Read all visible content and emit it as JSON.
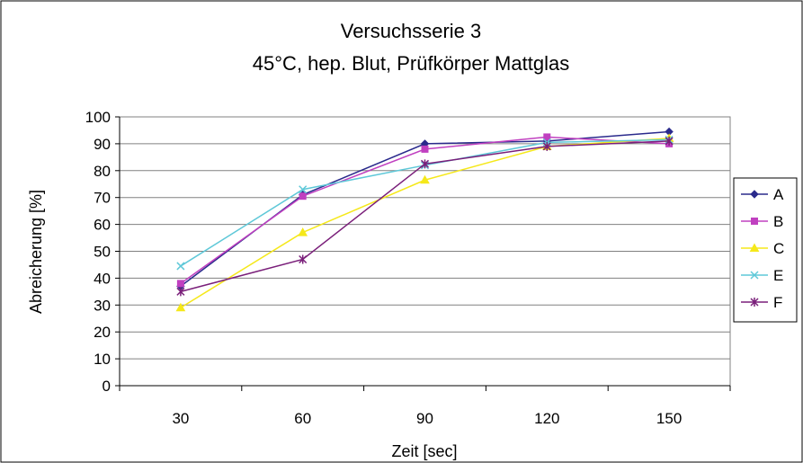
{
  "chart_data": {
    "type": "line",
    "title": "Versuchsserie 3",
    "subtitle": "45°C, hep. Blut, Prüfkörper Mattglas",
    "xlabel": "Zeit [sec]",
    "ylabel": "Abreicherung [%]",
    "categories": [
      "30",
      "60",
      "90",
      "120",
      "150"
    ],
    "ylim": [
      0,
      100
    ],
    "yticks": [
      "0",
      "10",
      "20",
      "30",
      "40",
      "50",
      "60",
      "70",
      "80",
      "90",
      "100"
    ],
    "grid": true,
    "legend_position": "right",
    "series": [
      {
        "name": "A",
        "color": "#2a2a8c",
        "marker": "diamond",
        "values": [
          37,
          71,
          90,
          91,
          94.5
        ]
      },
      {
        "name": "B",
        "color": "#c040c0",
        "marker": "square",
        "values": [
          38,
          70.5,
          88,
          92.5,
          90
        ]
      },
      {
        "name": "C",
        "color": "#f5e81a",
        "marker": "triangle",
        "values": [
          29,
          57,
          76.5,
          89,
          92
        ]
      },
      {
        "name": "E",
        "color": "#5ec8d8",
        "marker": "x",
        "values": [
          44.5,
          73,
          82,
          90.5,
          91.5
        ]
      },
      {
        "name": "F",
        "color": "#7a1f7a",
        "marker": "star",
        "values": [
          35,
          47,
          82.5,
          89,
          91
        ]
      }
    ]
  }
}
